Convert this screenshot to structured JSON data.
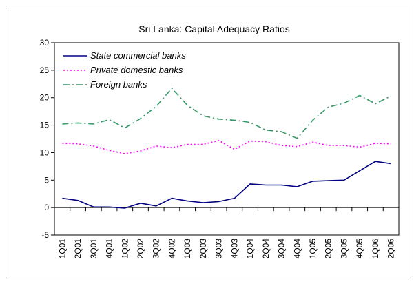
{
  "chart_data": {
    "type": "line",
    "title": "Sri Lanka: Capital Adequacy Ratios",
    "xlabel": "",
    "ylabel": "",
    "ylim": [
      -5,
      30
    ],
    "yticks": [
      -5,
      0,
      5,
      10,
      15,
      20,
      25,
      30
    ],
    "grid": false,
    "legend_position": "top-left",
    "x": [
      "1Q01",
      "2Q01",
      "3Q01",
      "4Q01",
      "1Q02",
      "2Q02",
      "3Q02",
      "4Q02",
      "1Q03",
      "2Q03",
      "3Q03",
      "4Q03",
      "1Q04",
      "2Q04",
      "3Q04",
      "4Q04",
      "1Q05",
      "2Q05",
      "3Q05",
      "4Q05",
      "1Q06",
      "2Q06"
    ],
    "series": [
      {
        "name": "State commercial banks",
        "color": "#000080",
        "style": "solid",
        "values": [
          1.7,
          1.3,
          0.1,
          0.1,
          -0.1,
          0.8,
          0.3,
          1.7,
          1.2,
          0.9,
          1.1,
          1.7,
          4.3,
          4.1,
          4.1,
          3.8,
          4.8,
          4.9,
          5.0,
          6.7,
          8.4,
          8.0
        ]
      },
      {
        "name": "Private domestic banks",
        "color": "#ff00ff",
        "style": "dotted",
        "values": [
          11.7,
          11.6,
          11.2,
          10.4,
          9.8,
          10.3,
          11.2,
          10.9,
          11.5,
          11.5,
          12.2,
          10.6,
          12.1,
          12.0,
          11.3,
          11.1,
          11.9,
          11.3,
          11.3,
          11.0,
          11.7,
          11.6
        ]
      },
      {
        "name": "Foreign banks",
        "color": "#339966",
        "style": "dashdot",
        "values": [
          15.2,
          15.4,
          15.2,
          16.0,
          14.5,
          16.2,
          18.4,
          21.7,
          18.6,
          16.7,
          16.1,
          15.9,
          15.5,
          14.1,
          13.8,
          12.6,
          15.9,
          18.3,
          19.0,
          20.4,
          18.9,
          20.3
        ]
      }
    ]
  }
}
